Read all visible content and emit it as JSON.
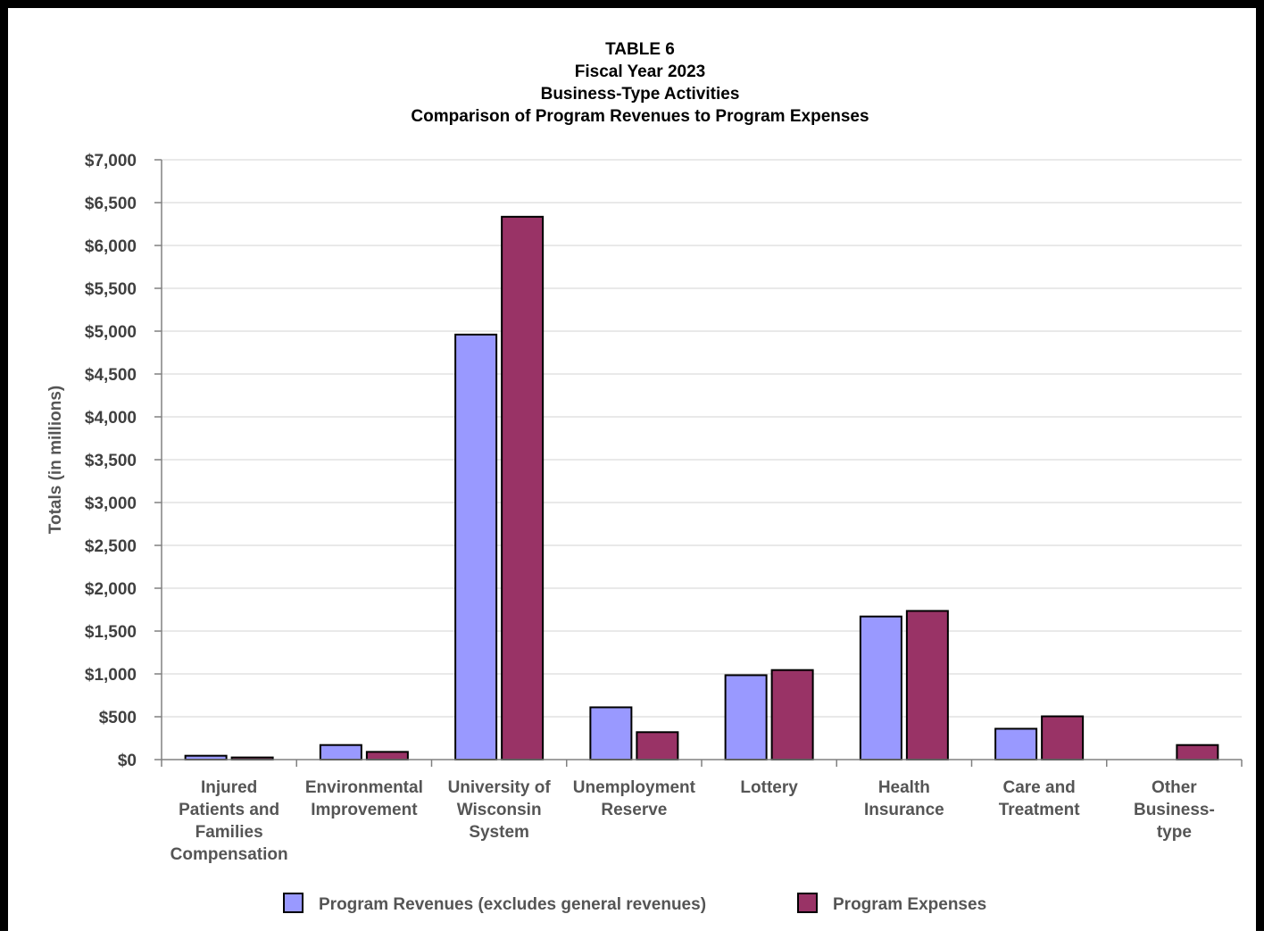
{
  "chart_data": {
    "type": "bar",
    "title_lines": [
      "TABLE 6",
      "Fiscal Year 2023",
      "Business-Type Activities",
      "Comparison of Program Revenues to Program Expenses"
    ],
    "xlabel": "",
    "ylabel": "Totals (in millions)",
    "ylim": [
      0,
      7000
    ],
    "yticks": [
      "$0",
      "$500",
      "$1,000",
      "$1,500",
      "$2,000",
      "$2,500",
      "$3,000",
      "$3,500",
      "$4,000",
      "$4,500",
      "$5,000",
      "$5,500",
      "$6,000",
      "$6,500",
      "$7,000"
    ],
    "grid": true,
    "legend_position": "bottom",
    "categories": [
      "Injured Patients and Families Compensation",
      "Environmental Improvement",
      "University of Wisconsin System",
      "Unemployment Reserve",
      "Lottery",
      "Health Insurance",
      "Care and Treatment",
      "Other Business-type"
    ],
    "category_lines": [
      [
        "Injured",
        "Patients and",
        "Families",
        "Compensation"
      ],
      [
        "Environmental",
        "Improvement"
      ],
      [
        "University of",
        "Wisconsin",
        "System"
      ],
      [
        "Unemployment",
        "Reserve"
      ],
      [
        "Lottery"
      ],
      [
        "Health",
        "Insurance"
      ],
      [
        "Care and",
        "Treatment"
      ],
      [
        "Other",
        "Business-",
        "type"
      ]
    ],
    "series": [
      {
        "name": "Program Revenues (excludes general revenues)",
        "color": "#9999ff",
        "values": [
          45,
          170,
          4960,
          610,
          985,
          1670,
          360,
          0
        ]
      },
      {
        "name": "Program Expenses",
        "color": "#993366",
        "values": [
          25,
          90,
          6335,
          320,
          1045,
          1735,
          505,
          170
        ]
      }
    ]
  }
}
